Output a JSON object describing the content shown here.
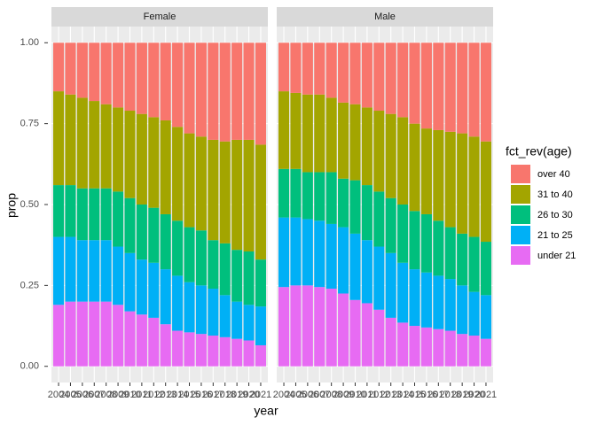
{
  "chart_data": {
    "type": "stacked-bar",
    "x_label": "year",
    "y_label": "prop",
    "legend_title": "fct_rev(age)",
    "categories": [
      "2004",
      "2005",
      "2006",
      "2007",
      "2008",
      "2009",
      "2010",
      "2011",
      "2012",
      "2013",
      "2014",
      "2015",
      "2016",
      "2017",
      "2018",
      "2019",
      "2020",
      "2021"
    ],
    "ylim": [
      -0.05,
      1.05
    ],
    "yticks": [
      {
        "value": 0,
        "label": "0.00"
      },
      {
        "value": 0.25,
        "label": "0.25"
      },
      {
        "value": 0.5,
        "label": "0.50"
      },
      {
        "value": 0.75,
        "label": "0.75"
      },
      {
        "value": 1,
        "label": "1.00"
      }
    ],
    "grid": true,
    "series": [
      {
        "name": "over 40",
        "color": "#F8766D"
      },
      {
        "name": "31 to 40",
        "color": "#A3A500"
      },
      {
        "name": "26 to 30",
        "color": "#00BF7D"
      },
      {
        "name": "21 to 25",
        "color": "#00B0F6"
      },
      {
        "name": "under 21",
        "color": "#E76BF3"
      }
    ],
    "facets": [
      {
        "name": "Female",
        "values": [
          [
            0.15,
            0.16,
            0.17,
            0.18,
            0.19,
            0.2,
            0.21,
            0.22,
            0.23,
            0.24,
            0.26,
            0.28,
            0.29,
            0.3,
            0.305,
            0.3,
            0.3,
            0.315
          ],
          [
            0.29,
            0.28,
            0.28,
            0.27,
            0.26,
            0.26,
            0.27,
            0.28,
            0.28,
            0.29,
            0.29,
            0.29,
            0.29,
            0.31,
            0.315,
            0.34,
            0.345,
            0.355
          ],
          [
            0.16,
            0.16,
            0.16,
            0.16,
            0.16,
            0.17,
            0.17,
            0.17,
            0.17,
            0.17,
            0.17,
            0.17,
            0.17,
            0.15,
            0.16,
            0.16,
            0.165,
            0.145
          ],
          [
            0.21,
            0.2,
            0.19,
            0.19,
            0.19,
            0.18,
            0.18,
            0.17,
            0.17,
            0.17,
            0.17,
            0.155,
            0.15,
            0.145,
            0.13,
            0.115,
            0.11,
            0.12
          ],
          [
            0.19,
            0.2,
            0.2,
            0.2,
            0.2,
            0.19,
            0.17,
            0.16,
            0.15,
            0.13,
            0.11,
            0.105,
            0.1,
            0.095,
            0.09,
            0.085,
            0.08,
            0.065
          ]
        ]
      },
      {
        "name": "Male",
        "values": [
          [
            0.15,
            0.155,
            0.16,
            0.16,
            0.17,
            0.185,
            0.19,
            0.2,
            0.21,
            0.22,
            0.23,
            0.25,
            0.265,
            0.27,
            0.275,
            0.28,
            0.29,
            0.305
          ],
          [
            0.24,
            0.235,
            0.24,
            0.24,
            0.23,
            0.235,
            0.235,
            0.24,
            0.25,
            0.26,
            0.27,
            0.27,
            0.265,
            0.28,
            0.295,
            0.31,
            0.31,
            0.31
          ],
          [
            0.15,
            0.15,
            0.145,
            0.15,
            0.16,
            0.15,
            0.165,
            0.17,
            0.17,
            0.17,
            0.18,
            0.18,
            0.18,
            0.17,
            0.16,
            0.16,
            0.17,
            0.165
          ],
          [
            0.215,
            0.21,
            0.205,
            0.205,
            0.2,
            0.205,
            0.205,
            0.195,
            0.195,
            0.2,
            0.185,
            0.175,
            0.17,
            0.165,
            0.16,
            0.15,
            0.135,
            0.135
          ],
          [
            0.245,
            0.25,
            0.25,
            0.245,
            0.24,
            0.225,
            0.205,
            0.195,
            0.175,
            0.15,
            0.135,
            0.125,
            0.12,
            0.115,
            0.11,
            0.1,
            0.095,
            0.085
          ]
        ]
      }
    ]
  }
}
